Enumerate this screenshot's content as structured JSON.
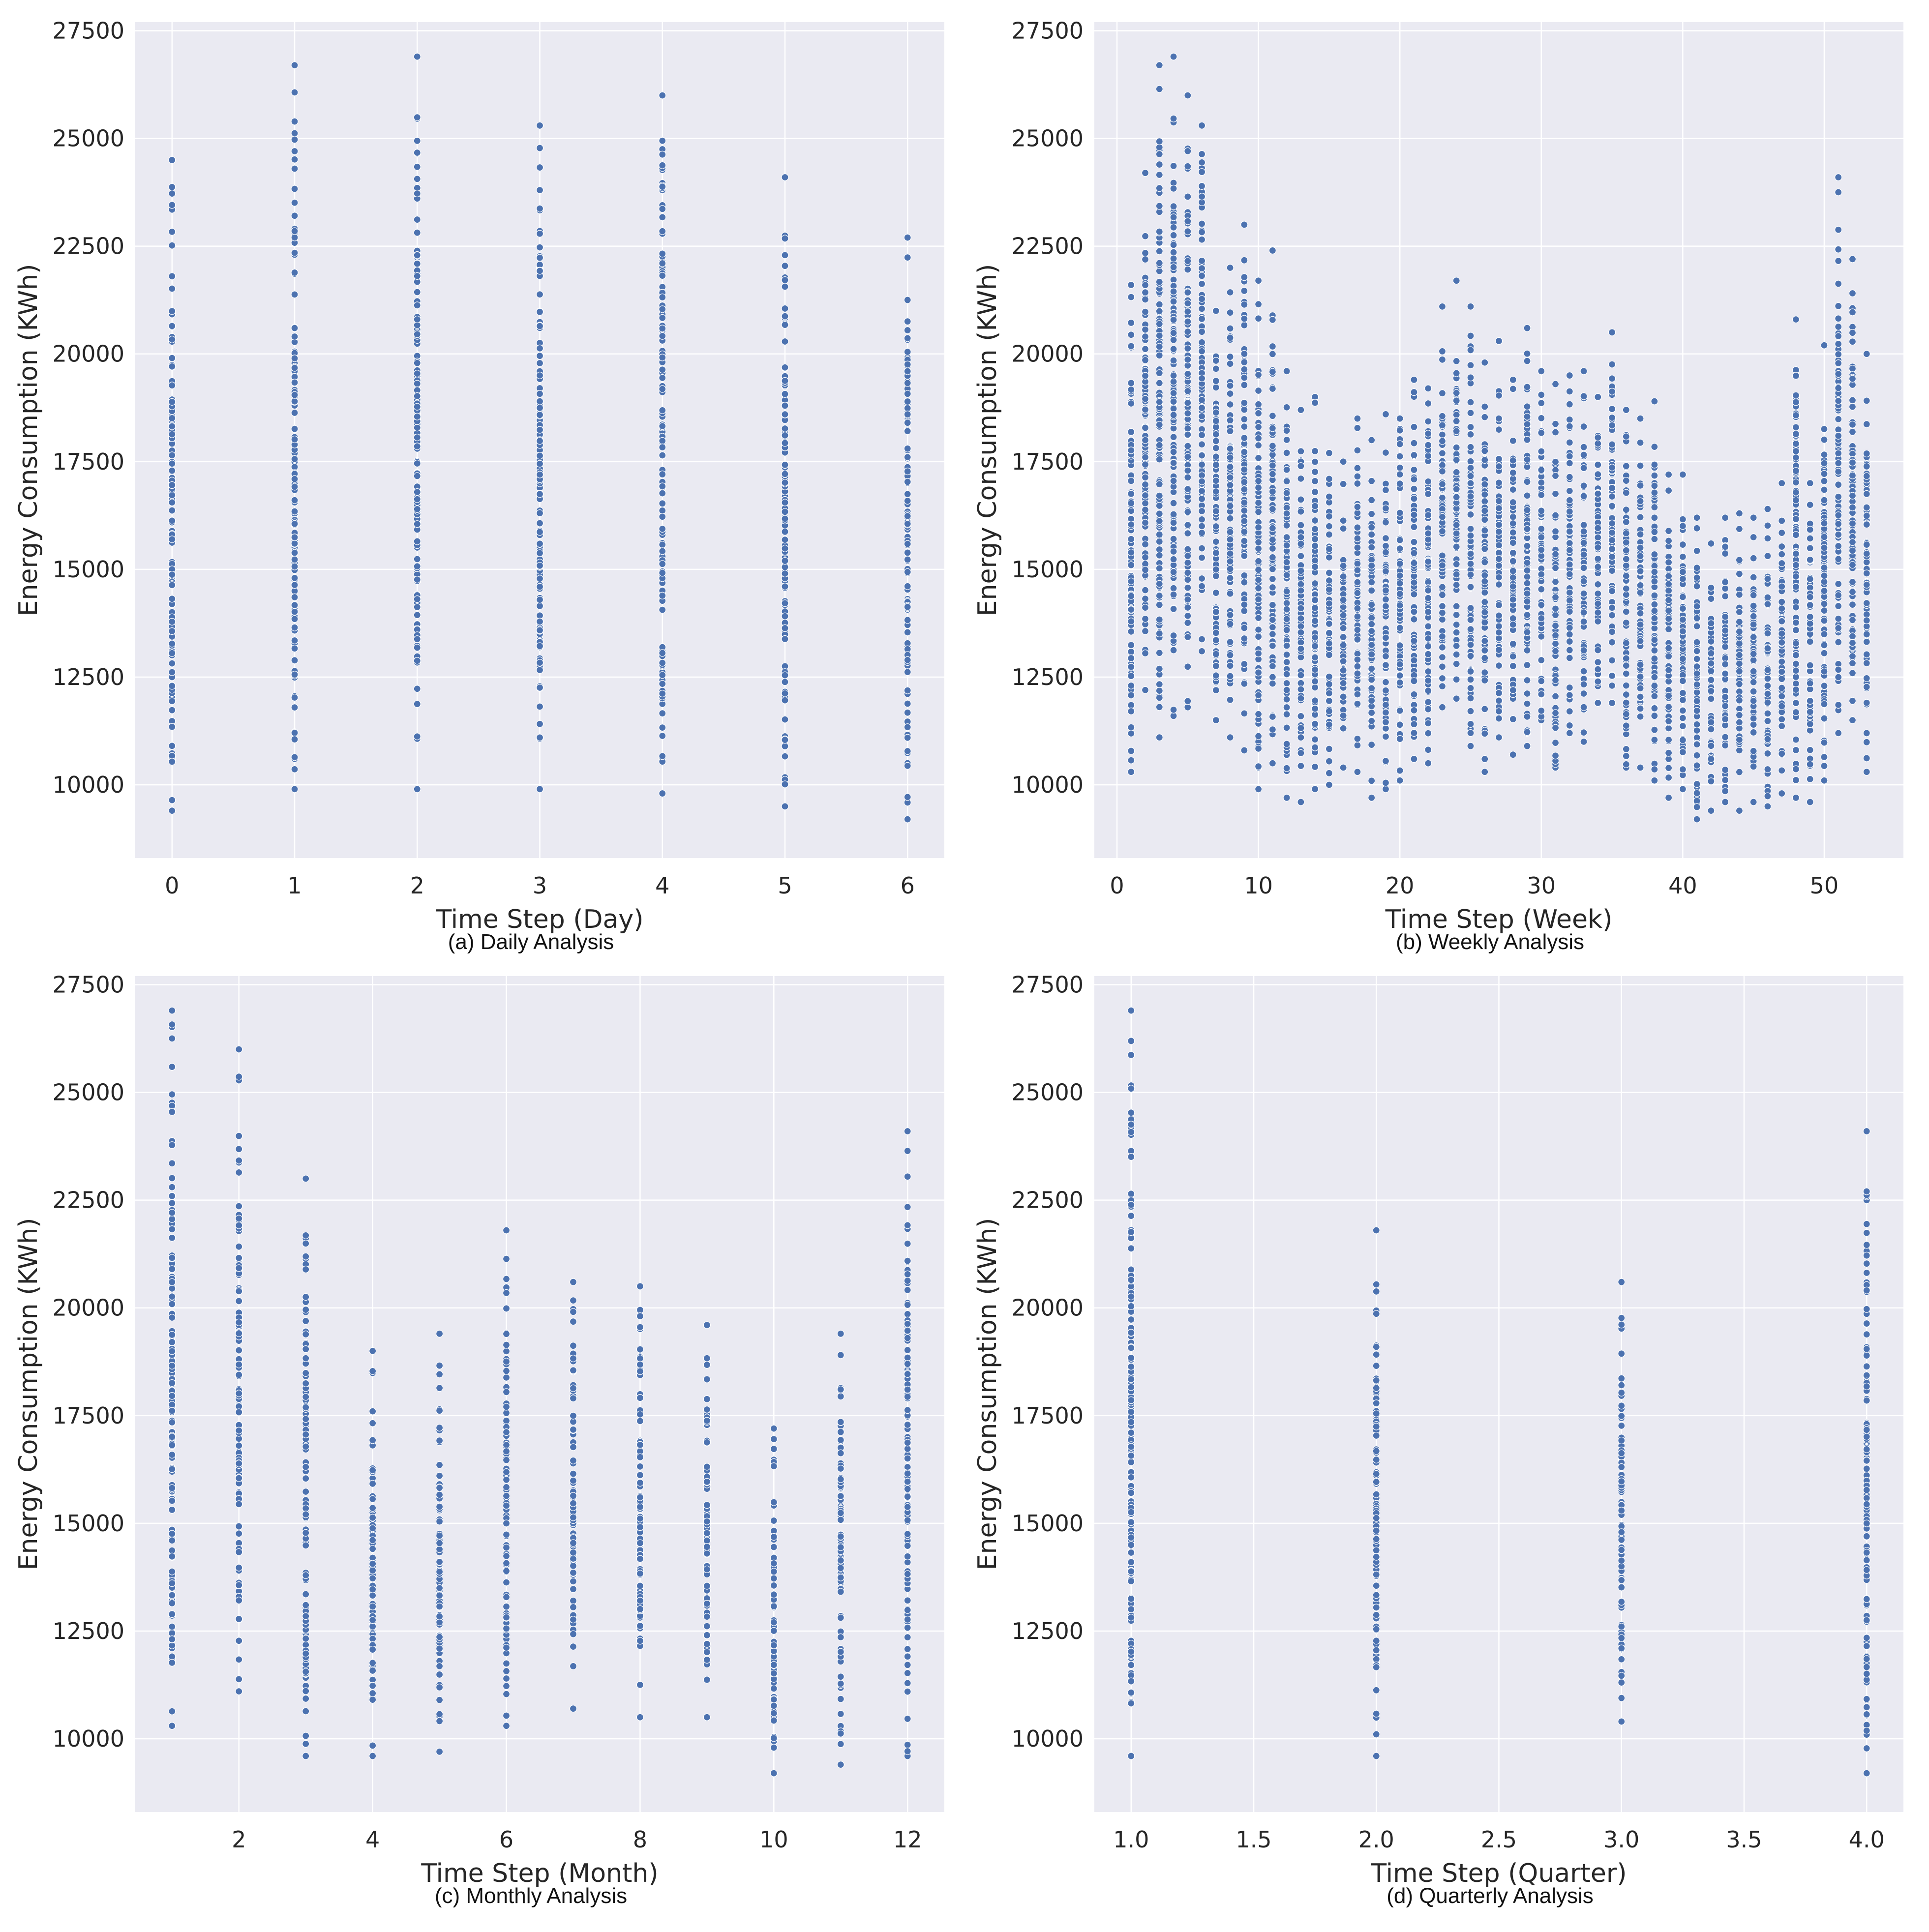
{
  "figure": {
    "background": "#ffffff"
  },
  "style": {
    "plot_bg": "#eaeaf2",
    "grid": "#ffffff",
    "point": "#4c72b0",
    "point_edge": "#ffffff",
    "text": "#262626"
  },
  "chart_data": [
    {
      "id": "daily",
      "type": "scatter",
      "caption": "(a) Daily Analysis",
      "xlabel": "Time Step (Day)",
      "ylabel": "Energy Consumption (KWh)",
      "xlim": [
        -0.3,
        6.3
      ],
      "ylim": [
        8300,
        27700
      ],
      "xticks": [
        0,
        1,
        2,
        3,
        4,
        5,
        6
      ],
      "xtick_labels": [
        "0",
        "1",
        "2",
        "3",
        "4",
        "5",
        "6"
      ],
      "yticks": [
        10000,
        12500,
        15000,
        17500,
        20000,
        22500,
        25000,
        27500
      ],
      "ytick_labels": [
        "10000",
        "12500",
        "15000",
        "17500",
        "20000",
        "22500",
        "25000",
        "27500"
      ],
      "grid": true,
      "distribution": [
        {
          "x": 0,
          "min": 9400,
          "max": 24500
        },
        {
          "x": 1,
          "min": 9900,
          "max": 26700
        },
        {
          "x": 2,
          "min": 9900,
          "max": 26900
        },
        {
          "x": 3,
          "min": 9900,
          "max": 25300
        },
        {
          "x": 4,
          "min": 9800,
          "max": 26000
        },
        {
          "x": 5,
          "min": 9500,
          "max": 24100
        },
        {
          "x": 6,
          "min": 9200,
          "max": 22700
        }
      ]
    },
    {
      "id": "weekly",
      "type": "scatter",
      "caption": "(b) Weekly Analysis",
      "xlabel": "Time Step (Week)",
      "ylabel": "Energy Consumption (KWh)",
      "xlim": [
        -1.6,
        55.6
      ],
      "ylim": [
        8300,
        27700
      ],
      "xticks": [
        0,
        10,
        20,
        30,
        40,
        50
      ],
      "xtick_labels": [
        "0",
        "10",
        "20",
        "30",
        "40",
        "50"
      ],
      "yticks": [
        10000,
        12500,
        15000,
        17500,
        20000,
        22500,
        25000,
        27500
      ],
      "ytick_labels": [
        "10000",
        "12500",
        "15000",
        "17500",
        "20000",
        "22500",
        "25000",
        "27500"
      ],
      "grid": true,
      "distribution": [
        {
          "x": 1,
          "min": 10300,
          "max": 21600
        },
        {
          "x": 2,
          "min": 12200,
          "max": 24200
        },
        {
          "x": 3,
          "min": 11100,
          "max": 26700
        },
        {
          "x": 4,
          "min": 11600,
          "max": 26900
        },
        {
          "x": 5,
          "min": 11800,
          "max": 26000
        },
        {
          "x": 6,
          "min": 13100,
          "max": 25300
        },
        {
          "x": 7,
          "min": 11500,
          "max": 21000
        },
        {
          "x": 8,
          "min": 11100,
          "max": 22000
        },
        {
          "x": 9,
          "min": 10800,
          "max": 23000
        },
        {
          "x": 10,
          "min": 9900,
          "max": 21700
        },
        {
          "x": 11,
          "min": 10500,
          "max": 22400
        },
        {
          "x": 12,
          "min": 9700,
          "max": 19600
        },
        {
          "x": 13,
          "min": 9600,
          "max": 18700
        },
        {
          "x": 14,
          "min": 9900,
          "max": 19000
        },
        {
          "x": 15,
          "min": 10000,
          "max": 17700
        },
        {
          "x": 16,
          "min": 10400,
          "max": 17500
        },
        {
          "x": 17,
          "min": 10300,
          "max": 18500
        },
        {
          "x": 18,
          "min": 9700,
          "max": 18000
        },
        {
          "x": 19,
          "min": 9900,
          "max": 18600
        },
        {
          "x": 20,
          "min": 10100,
          "max": 18500
        },
        {
          "x": 21,
          "min": 10600,
          "max": 19400
        },
        {
          "x": 22,
          "min": 10500,
          "max": 19200
        },
        {
          "x": 23,
          "min": 11800,
          "max": 21100
        },
        {
          "x": 24,
          "min": 12000,
          "max": 21700
        },
        {
          "x": 25,
          "min": 10900,
          "max": 21100
        },
        {
          "x": 26,
          "min": 10300,
          "max": 19800
        },
        {
          "x": 27,
          "min": 11100,
          "max": 20300
        },
        {
          "x": 28,
          "min": 10700,
          "max": 19400
        },
        {
          "x": 29,
          "min": 10900,
          "max": 20600
        },
        {
          "x": 30,
          "min": 11500,
          "max": 19600
        },
        {
          "x": 31,
          "min": 10400,
          "max": 19300
        },
        {
          "x": 32,
          "min": 11200,
          "max": 19500
        },
        {
          "x": 33,
          "min": 11000,
          "max": 19600
        },
        {
          "x": 34,
          "min": 11900,
          "max": 19000
        },
        {
          "x": 35,
          "min": 11900,
          "max": 20500
        },
        {
          "x": 36,
          "min": 10400,
          "max": 18700
        },
        {
          "x": 37,
          "min": 10400,
          "max": 18500
        },
        {
          "x": 38,
          "min": 10100,
          "max": 18900
        },
        {
          "x": 39,
          "min": 9700,
          "max": 17200
        },
        {
          "x": 40,
          "min": 9900,
          "max": 17200
        },
        {
          "x": 41,
          "min": 9200,
          "max": 16200
        },
        {
          "x": 42,
          "min": 9400,
          "max": 15600
        },
        {
          "x": 43,
          "min": 9600,
          "max": 16200
        },
        {
          "x": 44,
          "min": 9400,
          "max": 16300
        },
        {
          "x": 45,
          "min": 9600,
          "max": 16200
        },
        {
          "x": 46,
          "min": 9500,
          "max": 16400
        },
        {
          "x": 47,
          "min": 9800,
          "max": 17000
        },
        {
          "x": 48,
          "min": 9700,
          "max": 20800
        },
        {
          "x": 49,
          "min": 9600,
          "max": 17000
        },
        {
          "x": 50,
          "min": 10100,
          "max": 20200
        },
        {
          "x": 51,
          "min": 11200,
          "max": 24100
        },
        {
          "x": 52,
          "min": 11500,
          "max": 22200
        },
        {
          "x": 53,
          "min": 10300,
          "max": 20000
        }
      ]
    },
    {
      "id": "monthly",
      "type": "scatter",
      "caption": "(c) Monthly Analysis",
      "xlabel": "Time Step (Month)",
      "ylabel": "Energy Consumption (KWh)",
      "xlim": [
        0.45,
        12.55
      ],
      "ylim": [
        8300,
        27700
      ],
      "xticks": [
        2,
        4,
        6,
        8,
        10,
        12
      ],
      "xtick_labels": [
        "2",
        "4",
        "6",
        "8",
        "10",
        "12"
      ],
      "yticks": [
        10000,
        12500,
        15000,
        17500,
        20000,
        22500,
        25000,
        27500
      ],
      "ytick_labels": [
        "10000",
        "12500",
        "15000",
        "17500",
        "20000",
        "22500",
        "25000",
        "27500"
      ],
      "grid": true,
      "distribution": [
        {
          "x": 1,
          "min": 10300,
          "max": 26900
        },
        {
          "x": 2,
          "min": 11100,
          "max": 26000
        },
        {
          "x": 3,
          "min": 9600,
          "max": 23000
        },
        {
          "x": 4,
          "min": 9600,
          "max": 19000
        },
        {
          "x": 5,
          "min": 9700,
          "max": 19400
        },
        {
          "x": 6,
          "min": 10300,
          "max": 21800
        },
        {
          "x": 7,
          "min": 10700,
          "max": 20600
        },
        {
          "x": 8,
          "min": 10500,
          "max": 20500
        },
        {
          "x": 9,
          "min": 10500,
          "max": 19600
        },
        {
          "x": 10,
          "min": 9200,
          "max": 17200
        },
        {
          "x": 11,
          "min": 9400,
          "max": 19400
        },
        {
          "x": 12,
          "min": 9600,
          "max": 24100
        }
      ]
    },
    {
      "id": "quarterly",
      "type": "scatter",
      "caption": "(d) Quarterly Analysis",
      "xlabel": "Time Step (Quarter)",
      "ylabel": "Energy Consumption (KWh)",
      "xlim": [
        0.85,
        4.15
      ],
      "ylim": [
        8300,
        27700
      ],
      "xticks": [
        1.0,
        1.5,
        2.0,
        2.5,
        3.0,
        3.5,
        4.0
      ],
      "xtick_labels": [
        "1.0",
        "1.5",
        "2.0",
        "2.5",
        "3.0",
        "3.5",
        "4.0"
      ],
      "yticks": [
        10000,
        12500,
        15000,
        17500,
        20000,
        22500,
        25000,
        27500
      ],
      "ytick_labels": [
        "10000",
        "12500",
        "15000",
        "17500",
        "20000",
        "22500",
        "25000",
        "27500"
      ],
      "grid": true,
      "distribution": [
        {
          "x": 1,
          "min": 9600,
          "max": 26900
        },
        {
          "x": 2,
          "min": 9600,
          "max": 21800
        },
        {
          "x": 3,
          "min": 10400,
          "max": 20600
        },
        {
          "x": 4,
          "min": 9200,
          "max": 24100
        }
      ]
    }
  ]
}
